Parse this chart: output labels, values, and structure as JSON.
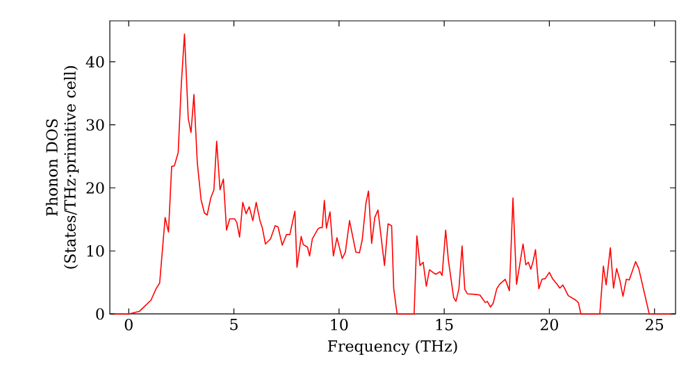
{
  "chart_data": {
    "type": "line",
    "xlabel": "Frequency (THz)",
    "ylabel": "Phonon DOS (States/THz·primitive cell)",
    "xlim": [
      -0.9,
      26.0
    ],
    "ylim": [
      0,
      46.5
    ],
    "xticks": [
      0,
      5,
      10,
      15,
      20,
      25
    ],
    "yticks": [
      0,
      10,
      20,
      30,
      40
    ],
    "marker": "none",
    "line_style": "solid",
    "series": [
      {
        "color": "#ff0000",
        "x": [
          -0.7,
          0,
          0.5,
          1.06,
          1.3,
          1.47,
          1.73,
          1.89,
          2.04,
          2.17,
          2.35,
          2.5,
          2.65,
          2.83,
          2.96,
          3.1,
          3.26,
          3.44,
          3.6,
          3.73,
          3.9,
          4.05,
          4.18,
          4.34,
          4.5,
          4.65,
          4.8,
          5.03,
          5.14,
          5.27,
          5.42,
          5.58,
          5.73,
          5.9,
          6.06,
          6.24,
          6.35,
          6.5,
          6.74,
          6.96,
          7.1,
          7.3,
          7.5,
          7.66,
          7.9,
          8.0,
          8.2,
          8.3,
          8.5,
          8.6,
          8.73,
          9.0,
          9.1,
          9.2,
          9.3,
          9.4,
          9.57,
          9.73,
          9.9,
          10.15,
          10.3,
          10.5,
          10.6,
          10.8,
          10.97,
          11.1,
          11.28,
          11.4,
          11.55,
          11.7,
          11.85,
          12.16,
          12.33,
          12.5,
          12.6,
          12.76,
          13.57,
          13.7,
          13.85,
          14.0,
          14.15,
          14.3,
          14.5,
          14.6,
          14.8,
          14.9,
          15.07,
          15.2,
          15.45,
          15.56,
          15.7,
          15.85,
          15.98,
          16.1,
          16.5,
          16.7,
          16.95,
          17.05,
          17.2,
          17.33,
          17.5,
          17.63,
          17.9,
          18.1,
          18.27,
          18.44,
          18.6,
          18.75,
          18.88,
          19.0,
          19.12,
          19.23,
          19.34,
          19.5,
          19.65,
          19.8,
          20.0,
          20.15,
          20.37,
          20.5,
          20.64,
          20.9,
          21.25,
          21.38,
          21.5,
          22.4,
          22.57,
          22.7,
          22.9,
          23.05,
          23.2,
          23.35,
          23.5,
          23.66,
          23.8,
          24.1,
          24.25,
          24.75,
          25.8
        ],
        "values": [
          0,
          0,
          0.4,
          2.2,
          4,
          4.9,
          15.3,
          13,
          23.4,
          23.5,
          25.6,
          36.5,
          44.4,
          31,
          28.8,
          34.8,
          24,
          18.1,
          16,
          15.7,
          18.4,
          19.7,
          27.4,
          19.7,
          21.4,
          13.3,
          15.1,
          15.1,
          14.5,
          12.2,
          17.7,
          15.9,
          17,
          14.8,
          17.7,
          14.8,
          13.7,
          11.1,
          11.9,
          14,
          13.8,
          10.9,
          12.6,
          12.6,
          16.3,
          7.4,
          12.3,
          11,
          10.6,
          9.2,
          11.9,
          13.5,
          13.7,
          13.7,
          18,
          13.6,
          16.2,
          9.2,
          12.1,
          8.8,
          9.8,
          14.8,
          13.1,
          9.8,
          9.7,
          11.7,
          17.6,
          19.5,
          11.2,
          15.3,
          16.5,
          7.7,
          14.3,
          14,
          4,
          0,
          0,
          12.4,
          7.7,
          8.2,
          4.4,
          7,
          6.5,
          6.3,
          6.7,
          6.1,
          13.3,
          8.5,
          2.6,
          2,
          4,
          10.8,
          3.9,
          3.2,
          3.1,
          3,
          1.8,
          2,
          1.1,
          1.7,
          4,
          4.7,
          5.5,
          3.7,
          18.4,
          4.7,
          8,
          11.1,
          7.8,
          8.2,
          7.1,
          8.4,
          10.2,
          4,
          5.5,
          5.6,
          6.6,
          5.6,
          4.7,
          4.1,
          4.6,
          2.9,
          2.2,
          1.8,
          0,
          0,
          7.6,
          4.6,
          10.5,
          4.1,
          7.2,
          5.4,
          2.8,
          5.5,
          5.4,
          8.3,
          7.2,
          0,
          0
        ]
      }
    ]
  }
}
